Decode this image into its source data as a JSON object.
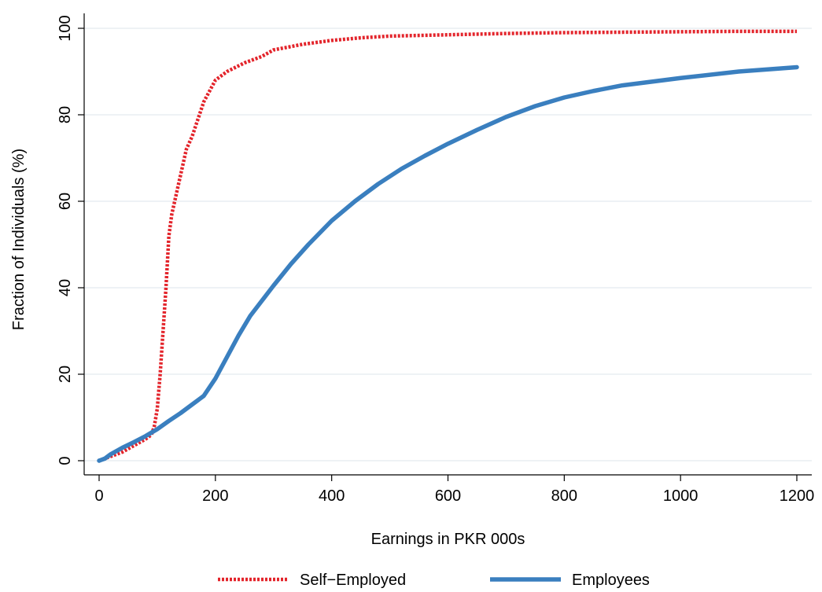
{
  "chart_data": {
    "type": "line",
    "title": "",
    "xlabel": "Earnings in PKR 000s",
    "ylabel": "Fraction of Individuals (%)",
    "xlim": [
      0,
      1200
    ],
    "ylim": [
      0,
      100
    ],
    "xticks": [
      0,
      200,
      400,
      600,
      800,
      1000,
      1200
    ],
    "yticks": [
      0,
      20,
      40,
      60,
      80,
      100
    ],
    "grid": true,
    "legend_position": "bottom",
    "series": [
      {
        "name": "Self−Employed",
        "color": "#e3242b",
        "style": "dotted",
        "x": [
          0,
          20,
          40,
          60,
          80,
          90,
          95,
          100,
          105,
          110,
          115,
          120,
          125,
          130,
          140,
          150,
          160,
          170,
          180,
          200,
          220,
          250,
          280,
          300,
          350,
          400,
          450,
          500,
          600,
          700,
          800,
          900,
          1000,
          1100,
          1200
        ],
        "y": [
          0,
          1,
          2,
          3.5,
          5,
          6,
          8,
          12,
          20,
          30,
          40,
          52,
          57,
          60,
          66,
          72,
          75,
          79,
          83,
          88,
          90,
          92,
          93.5,
          95,
          96.3,
          97.2,
          97.8,
          98.2,
          98.5,
          98.8,
          99,
          99.1,
          99.2,
          99.3,
          99.3
        ]
      },
      {
        "name": "Employees",
        "color": "#3a7fbf",
        "style": "solid",
        "x": [
          0,
          10,
          20,
          40,
          60,
          80,
          100,
          120,
          140,
          160,
          180,
          200,
          220,
          240,
          260,
          280,
          300,
          330,
          360,
          400,
          440,
          480,
          520,
          560,
          600,
          650,
          700,
          750,
          800,
          850,
          900,
          1000,
          1100,
          1200
        ],
        "y": [
          0,
          0.5,
          1.5,
          3,
          4.3,
          5.7,
          7.3,
          9.2,
          11,
          13,
          15,
          19,
          24,
          29,
          33.5,
          37,
          40.5,
          45.5,
          50,
          55.5,
          60,
          64,
          67.5,
          70.5,
          73.3,
          76.5,
          79.5,
          82,
          84,
          85.5,
          86.8,
          88.5,
          90,
          91
        ]
      }
    ]
  }
}
